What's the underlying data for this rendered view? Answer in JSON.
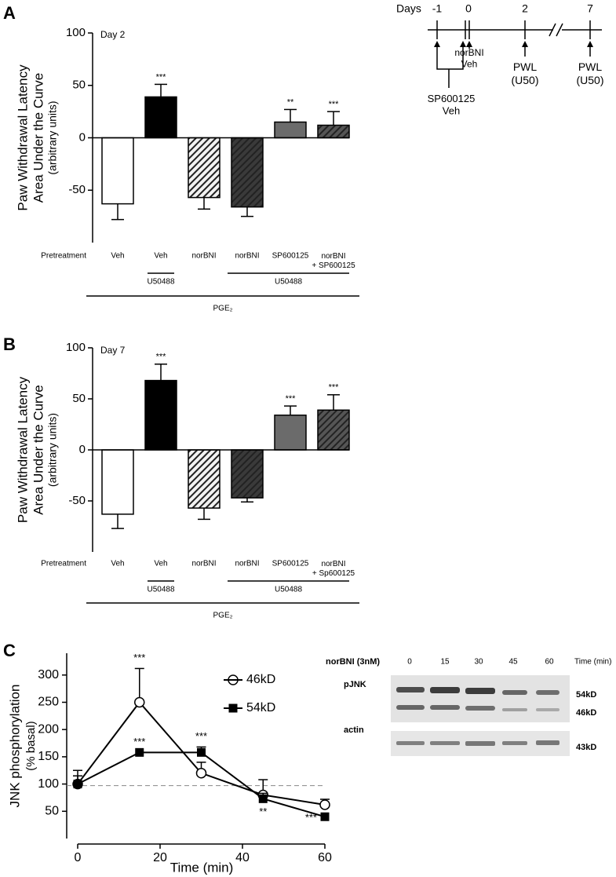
{
  "chart_data": [
    {
      "type": "bar",
      "panel": "A",
      "annotation": "Day 2",
      "ylabel": [
        "Paw Withdrawal Latency",
        "Area Under the Curve",
        "(arbitrary units)"
      ],
      "pretreatment_label": "Pretreatment",
      "categories": [
        "Veh",
        "Veh",
        "norBNI",
        "norBNI",
        "SP600125",
        "norBNI\n+ SP600125"
      ],
      "values": [
        -63,
        39,
        -57,
        -66,
        15,
        12
      ],
      "errors": [
        15,
        12,
        11,
        9,
        12,
        13
      ],
      "sig_labels": [
        null,
        "***",
        null,
        null,
        "**",
        "***"
      ],
      "colors": [
        "#ffffff",
        "#000000",
        "#f2f2f2",
        "#3a3a3a",
        "#6b6b6b",
        "#555555"
      ],
      "hatched": [
        false,
        false,
        true,
        true,
        false,
        true
      ],
      "treatment_labels": [
        "U50488",
        "U50488"
      ],
      "vehicle_label": "PGE₂",
      "ylim": [
        -100,
        100
      ],
      "yticks": [
        -50,
        0,
        50,
        100
      ]
    },
    {
      "type": "bar",
      "panel": "B",
      "annotation": "Day 7",
      "ylabel": [
        "Paw Withdrawal Latency",
        "Area Under the Curve",
        "(arbitrary units)"
      ],
      "pretreatment_label": "Pretreatment",
      "categories": [
        "Veh",
        "Veh",
        "norBNI",
        "norBNI",
        "SP600125",
        "norBNI\n+ Sp600125"
      ],
      "values": [
        -63,
        68,
        -57,
        -47,
        34,
        39
      ],
      "errors": [
        14,
        16,
        11,
        4,
        9,
        15
      ],
      "sig_labels": [
        null,
        "***",
        null,
        null,
        "***",
        "***"
      ],
      "colors": [
        "#ffffff",
        "#000000",
        "#f2f2f2",
        "#3a3a3a",
        "#6b6b6b",
        "#555555"
      ],
      "hatched": [
        false,
        false,
        true,
        true,
        false,
        true
      ],
      "treatment_labels": [
        "U50488",
        "U50488"
      ],
      "vehicle_label": "PGE₂",
      "ylim": [
        -100,
        100
      ],
      "yticks": [
        -50,
        0,
        50,
        100
      ]
    },
    {
      "type": "line",
      "panel": "C",
      "ylabel": [
        "JNK phosphorylation",
        "(% basal)"
      ],
      "xlabel": "Time (min)",
      "x": [
        0,
        15,
        30,
        45,
        60
      ],
      "series": [
        {
          "name": "46kD",
          "color": "#000000",
          "marker": "circle",
          "values": [
            100,
            250,
            120,
            80,
            62
          ],
          "errors": [
            25,
            62,
            20,
            28,
            10
          ],
          "sig_labels": [
            null,
            "***",
            null,
            null,
            null
          ]
        },
        {
          "name": "54kD",
          "color": "#000000",
          "marker": "square",
          "values": [
            100,
            158,
            158,
            73,
            40
          ],
          "errors": [
            15,
            0,
            10,
            10,
            0
          ],
          "sig_labels": [
            null,
            "***",
            "***",
            "**",
            "***"
          ]
        }
      ],
      "hline": 97,
      "xlim": [
        0,
        60
      ],
      "xticks": [
        0,
        20,
        40,
        60
      ],
      "ylim": [
        0,
        340
      ],
      "yticks": [
        50,
        100,
        150,
        200,
        250,
        300
      ]
    }
  ],
  "timeline": {
    "title": "Days",
    "ticks": [
      "-1",
      "0",
      "2",
      "7"
    ],
    "labels": [
      "SP600125\nVeh",
      "norBNI\nVeh",
      "PWL\n(U50)",
      "PWL\n(U50)"
    ]
  },
  "blot": {
    "treatment": "norBNI (3nM)",
    "lanes": [
      "0",
      "15",
      "30",
      "45",
      "60"
    ],
    "lane_unit": "Time (min)",
    "rows": [
      "pJNK",
      "actin"
    ],
    "sizes": [
      "54kD",
      "46kD",
      "43kD"
    ]
  }
}
